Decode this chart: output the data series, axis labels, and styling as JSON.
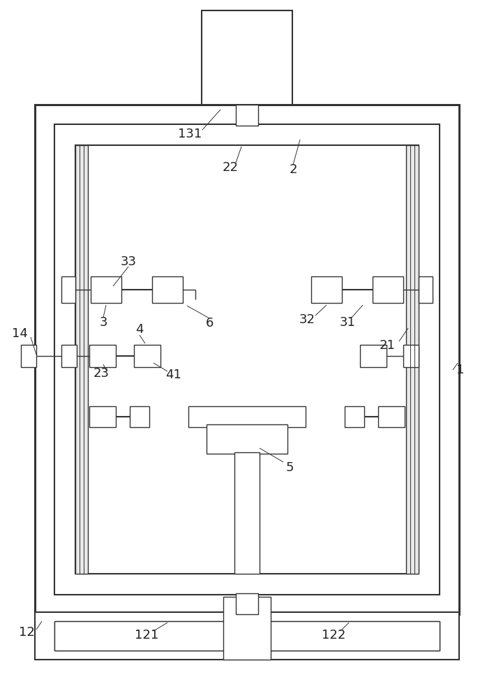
{
  "bg_color": "#ffffff",
  "lc": "#333333",
  "lw_thick": 2.2,
  "lw_med": 1.5,
  "lw_thin": 1.0,
  "lw_hair": 0.7
}
